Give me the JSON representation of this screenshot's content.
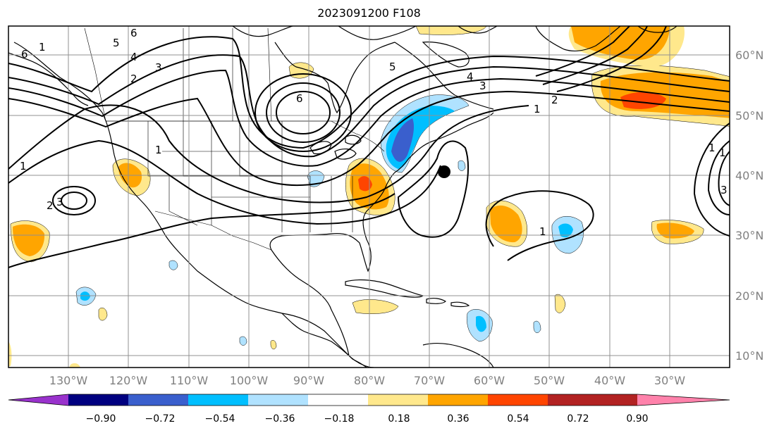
{
  "title": "2023091200 F108",
  "map": {
    "lon_labels": [
      "130°W",
      "120°W",
      "110°W",
      "100°W",
      "90°W",
      "80°W",
      "70°W",
      "60°W",
      "50°W",
      "40°W",
      "30°W"
    ],
    "lat_labels": [
      "60°N",
      "50°N",
      "40°N",
      "30°N",
      "20°N",
      "10°N"
    ],
    "contour_labels": [
      "6",
      "5",
      "4",
      "3",
      "2",
      "1",
      "6",
      "5",
      "4",
      "3",
      "2",
      "1",
      "1",
      "2",
      "3",
      "1",
      "1",
      "1",
      "1",
      "3",
      "6"
    ],
    "storm_marker": "storm-center-dot"
  },
  "colorbar": {
    "ticks": [
      "−0.90",
      "−0.72",
      "−0.54",
      "−0.36",
      "−0.18",
      "0.18",
      "0.36",
      "0.54",
      "0.72",
      "0.90"
    ],
    "colors": {
      "below": "#9932cc",
      "bins": [
        "#000080",
        "#3a5fcd",
        "#00bfff",
        "#b0e2ff",
        "#ffffff",
        "#ffe88c",
        "#ffa500",
        "#ff4500",
        "#b22222"
      ],
      "above": "#ff82ab"
    }
  }
}
